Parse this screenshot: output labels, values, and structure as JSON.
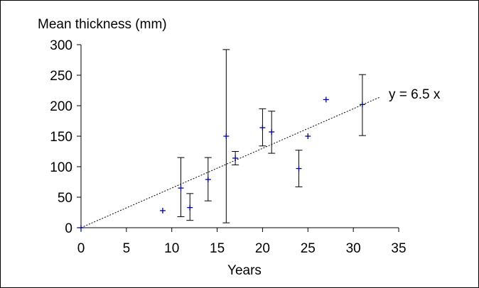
{
  "chart_data": {
    "type": "scatter",
    "title": "",
    "ylabel": "Mean thickness (mm)",
    "xlabel": "Years",
    "xlim": [
      0,
      35
    ],
    "ylim": [
      0,
      300
    ],
    "x_ticks": [
      0,
      5,
      10,
      15,
      20,
      25,
      30,
      35
    ],
    "y_ticks": [
      0,
      50,
      100,
      150,
      200,
      250,
      300
    ],
    "grid": false,
    "marker": "+",
    "marker_color": "#00008b",
    "points": [
      {
        "x": 0,
        "y": 0
      },
      {
        "x": 9,
        "y": 28
      },
      {
        "x": 11,
        "y": 65,
        "err_low": 18,
        "err_high": 115
      },
      {
        "x": 12,
        "y": 33,
        "err_low": 12,
        "err_high": 56
      },
      {
        "x": 14,
        "y": 79,
        "err_low": 44,
        "err_high": 115
      },
      {
        "x": 16,
        "y": 150,
        "err_low": 8,
        "err_high": 292
      },
      {
        "x": 17,
        "y": 114,
        "err_low": 103,
        "err_high": 125
      },
      {
        "x": 20,
        "y": 164,
        "err_low": 134,
        "err_high": 195
      },
      {
        "x": 21,
        "y": 157,
        "err_low": 122,
        "err_high": 191
      },
      {
        "x": 24,
        "y": 97,
        "err_low": 67,
        "err_high": 127
      },
      {
        "x": 25,
        "y": 150
      },
      {
        "x": 27,
        "y": 210
      },
      {
        "x": 31,
        "y": 202,
        "err_low": 151,
        "err_high": 251
      }
    ],
    "trendline": {
      "slope": 6.5,
      "x_start": 0,
      "x_end": 33,
      "style": "dotted",
      "label": "y = 6.5 x"
    }
  }
}
